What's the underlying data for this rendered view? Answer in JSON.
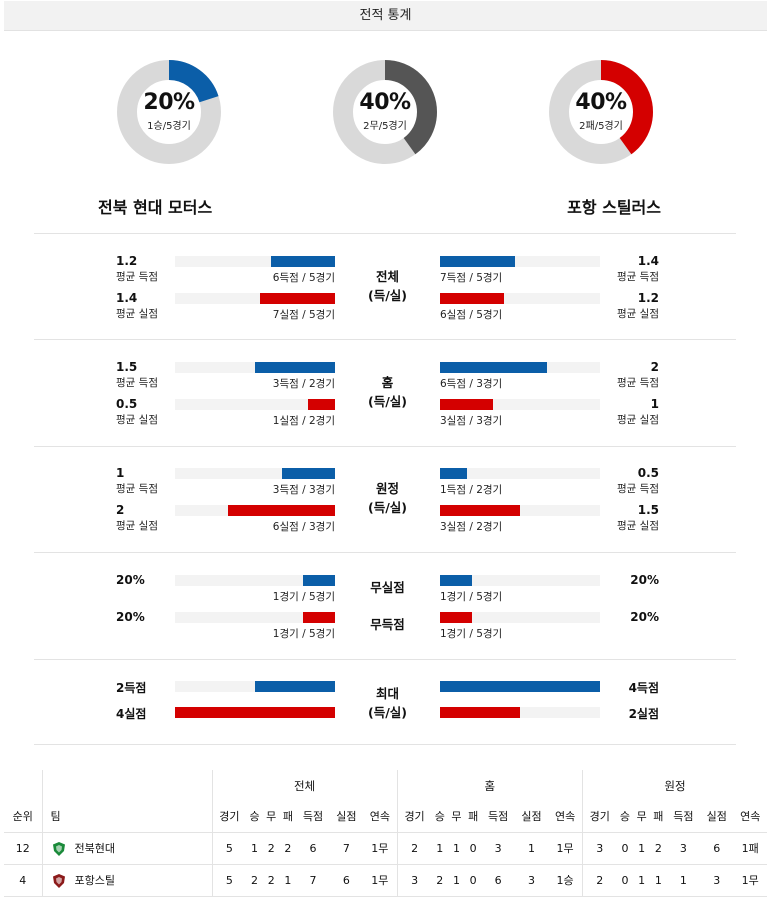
{
  "title": "전적 통계",
  "donuts": [
    {
      "pct": "20%",
      "sub": "1승/5경기",
      "value": 0.2,
      "color": "#0b5ea8"
    },
    {
      "pct": "40%",
      "sub": "2무/5경기",
      "value": 0.4,
      "color": "#555555"
    },
    {
      "pct": "40%",
      "sub": "2패/5경기",
      "value": 0.4,
      "color": "#d40000"
    }
  ],
  "teams": {
    "home": "전북 현대 모터스",
    "away": "포항 스틸러스"
  },
  "sections": [
    {
      "label1": "전체",
      "label2": "(득/실)",
      "rows": [
        {
          "lnum": "1.2",
          "llab": "평균 득점",
          "lbar": "6득점 / 5경기",
          "lratio": 0.4,
          "rnum": "1.4",
          "rlab": "평균 득점",
          "rbar": "7득점 / 5경기",
          "rratio": 0.47,
          "color": "blue"
        },
        {
          "lnum": "1.4",
          "llab": "평균 실점",
          "lbar": "7실점 / 5경기",
          "lratio": 0.47,
          "rnum": "1.2",
          "rlab": "평균 실점",
          "rbar": "6실점 / 5경기",
          "rratio": 0.4,
          "color": "red"
        }
      ]
    },
    {
      "label1": "홈",
      "label2": "(득/실)",
      "rows": [
        {
          "lnum": "1.5",
          "llab": "평균 득점",
          "lbar": "3득점 / 2경기",
          "lratio": 0.5,
          "rnum": "2",
          "rlab": "평균 득점",
          "rbar": "6득점 / 3경기",
          "rratio": 0.67,
          "color": "blue"
        },
        {
          "lnum": "0.5",
          "llab": "평균 실점",
          "lbar": "1실점 / 2경기",
          "lratio": 0.17,
          "rnum": "1",
          "rlab": "평균 실점",
          "rbar": "3실점 / 3경기",
          "rratio": 0.33,
          "color": "red"
        }
      ]
    },
    {
      "label1": "원정",
      "label2": "(득/실)",
      "rows": [
        {
          "lnum": "1",
          "llab": "평균 득점",
          "lbar": "3득점 / 3경기",
          "lratio": 0.33,
          "rnum": "0.5",
          "rlab": "평균 득점",
          "rbar": "1득점 / 2경기",
          "rratio": 0.17,
          "color": "blue"
        },
        {
          "lnum": "2",
          "llab": "평균 실점",
          "lbar": "6실점 / 3경기",
          "lratio": 0.67,
          "rnum": "1.5",
          "rlab": "평균 실점",
          "rbar": "3실점 / 2경기",
          "rratio": 0.5,
          "color": "red"
        }
      ]
    }
  ],
  "clean": {
    "rows": [
      {
        "label": "무실점",
        "lnum": "20%",
        "lbar": "1경기 / 5경기",
        "lratio": 0.2,
        "rnum": "20%",
        "rbar": "1경기 / 5경기",
        "rratio": 0.2,
        "color": "blue"
      },
      {
        "label": "무득점",
        "lnum": "20%",
        "lbar": "1경기 / 5경기",
        "lratio": 0.2,
        "rnum": "20%",
        "rbar": "1경기 / 5경기",
        "rratio": 0.2,
        "color": "red"
      }
    ]
  },
  "max": {
    "label1": "최대",
    "label2": "(득/실)",
    "rows": [
      {
        "lnum": "2득점",
        "lratio": 0.5,
        "rnum": "4득점",
        "rratio": 1.0,
        "color": "blue"
      },
      {
        "lnum": "4실점",
        "lratio": 1.0,
        "rnum": "2실점",
        "rratio": 0.5,
        "color": "red"
      }
    ]
  },
  "standings": {
    "groups": [
      "전체",
      "홈",
      "원정"
    ],
    "headers": {
      "rank": "순위",
      "team": "팀",
      "cols": [
        "경기",
        "승",
        "무",
        "패",
        "득점",
        "실점",
        "연속"
      ]
    },
    "rows": [
      {
        "rank": "12",
        "team": "전북현대",
        "logo_color": "#1a8a3a",
        "all": [
          "5",
          "1",
          "2",
          "2",
          "6",
          "7",
          "1무"
        ],
        "home": [
          "2",
          "1",
          "1",
          "0",
          "3",
          "1",
          "1무"
        ],
        "away": [
          "3",
          "0",
          "1",
          "2",
          "3",
          "6",
          "1패"
        ]
      },
      {
        "rank": "4",
        "team": "포항스틸",
        "logo_color": "#8b1a1a",
        "all": [
          "5",
          "2",
          "2",
          "1",
          "7",
          "6",
          "1무"
        ],
        "home": [
          "3",
          "2",
          "1",
          "0",
          "6",
          "3",
          "1승"
        ],
        "away": [
          "2",
          "0",
          "1",
          "1",
          "1",
          "3",
          "1무"
        ]
      }
    ]
  }
}
